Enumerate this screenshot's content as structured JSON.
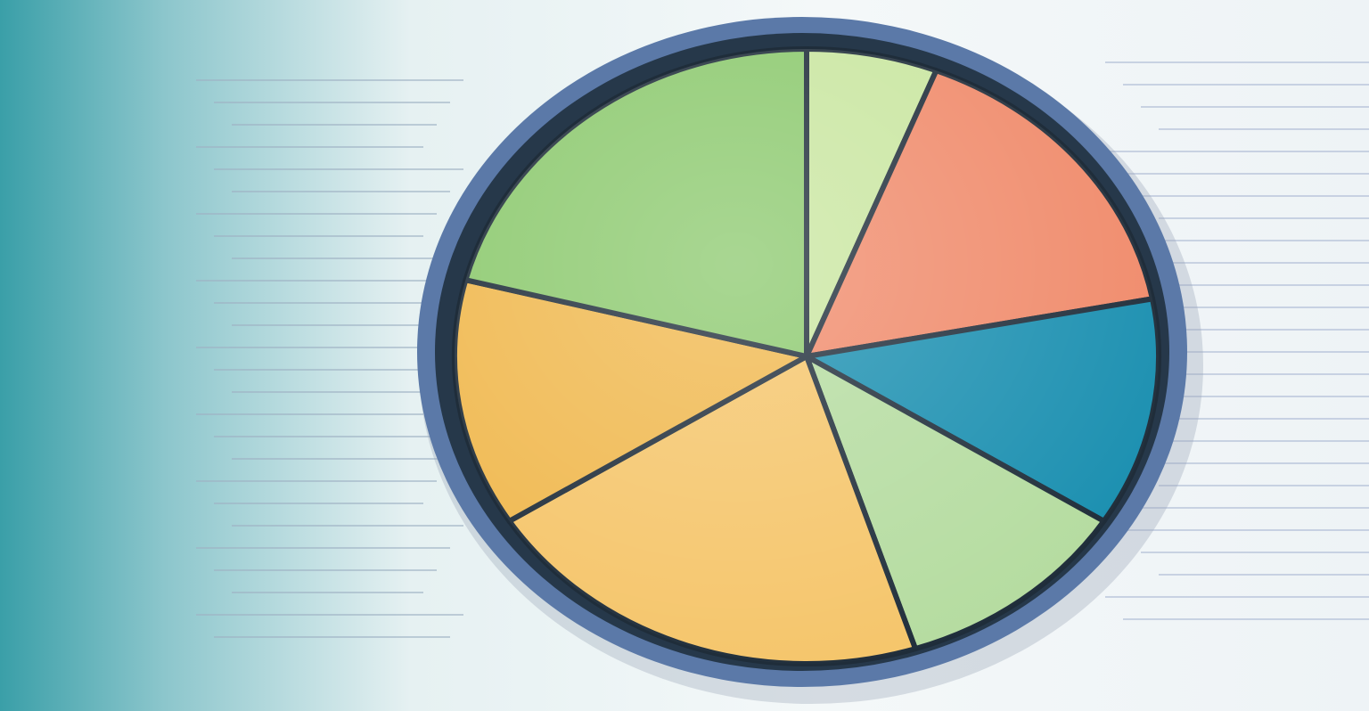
{
  "chart_data": {
    "type": "pie",
    "values": [
      6,
      16,
      12,
      11,
      21,
      13,
      21
    ],
    "colors": [
      "#c9e6a0",
      "#f08a6a",
      "#1a8fb0",
      "#b5dca0",
      "#f5c56a",
      "#f0b84e",
      "#8cc96e"
    ],
    "start_angle": 0
  }
}
